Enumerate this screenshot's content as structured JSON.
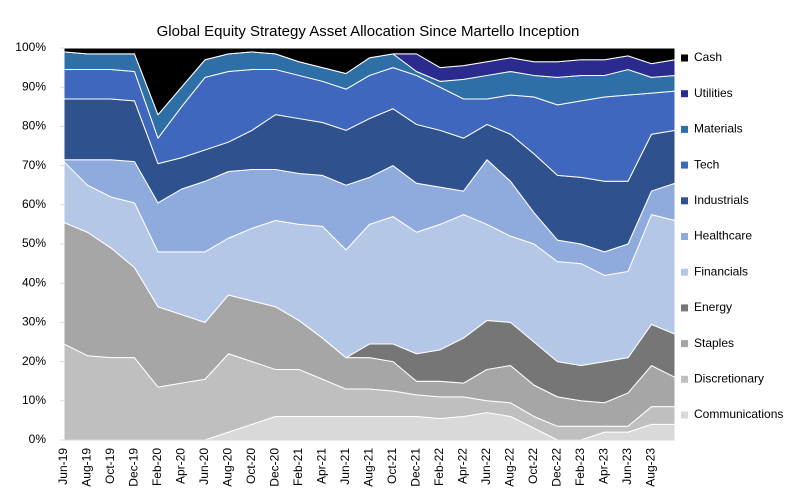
{
  "chart_data": {
    "type": "stacked_area",
    "title": "Global Equity Strategy Asset Allocation Since Martello Inception",
    "categories": [
      "Jun-19",
      "Aug-19",
      "Oct-19",
      "Dec-19",
      "Feb-20",
      "Apr-20",
      "Jun-20",
      "Aug-20",
      "Oct-20",
      "Dec-20",
      "Feb-21",
      "Apr-21",
      "Jun-21",
      "Aug-21",
      "Oct-21",
      "Dec-21",
      "Feb-22",
      "Apr-22",
      "Jun-22",
      "Aug-22",
      "Oct-22",
      "Dec-22",
      "Feb-23",
      "Apr-23",
      "Jun-23",
      "Aug-23",
      null
    ],
    "series": [
      {
        "name": "Communications",
        "color": "#d9d9d9",
        "values": [
          0,
          0,
          0,
          0,
          0,
          0,
          0,
          2,
          4,
          6,
          6,
          6,
          6,
          6,
          6,
          6,
          5.5,
          6,
          7,
          6,
          3,
          0,
          0,
          2,
          2,
          4,
          4
        ]
      },
      {
        "name": "Discretionary",
        "color": "#bfbfbf",
        "values": [
          24.5,
          21.5,
          21,
          21,
          13.5,
          14.5,
          15.5,
          20,
          16,
          12,
          12,
          9.5,
          7,
          7,
          6.5,
          5.5,
          5.5,
          5,
          3,
          3.5,
          3,
          3.5,
          3.5,
          1.5,
          1.5,
          4.5,
          4.5
        ]
      },
      {
        "name": "Staples",
        "color": "#a6a6a6",
        "values": [
          31,
          31.5,
          28,
          23,
          20.5,
          17.5,
          14.5,
          15,
          15.5,
          16,
          12.5,
          10.5,
          8,
          8,
          7.5,
          3.5,
          4,
          3.5,
          8,
          9.5,
          8,
          7.5,
          6.5,
          6,
          8.5,
          10.5,
          7.5
        ]
      },
      {
        "name": "Energy",
        "color": "#767676",
        "values": [
          0,
          0,
          0,
          0,
          0,
          0,
          0,
          0,
          0,
          0,
          0,
          0,
          0,
          3.5,
          4.5,
          7,
          8,
          11.5,
          12.5,
          11,
          11,
          9,
          9,
          10.5,
          9,
          10.5,
          11
        ]
      },
      {
        "name": "Financials",
        "color": "#b4c7e7",
        "values": [
          15.5,
          12,
          13,
          16.5,
          14,
          16,
          18,
          14.5,
          18.5,
          22,
          24.5,
          28.5,
          27.5,
          30.5,
          32.5,
          31,
          32,
          31.5,
          24.5,
          22,
          25,
          25.5,
          26,
          22,
          22,
          28,
          29
        ]
      },
      {
        "name": "Healthcare",
        "color": "#8faadc",
        "values": [
          0.5,
          6.5,
          9.5,
          10.5,
          12.5,
          16,
          18,
          17,
          15,
          13,
          13,
          13,
          16.5,
          12,
          13,
          12.5,
          9.5,
          6,
          16.5,
          14,
          8,
          5.5,
          5,
          6,
          7,
          6,
          9.5
        ]
      },
      {
        "name": "Industrials",
        "color": "#2f528f",
        "values": [
          15.5,
          15.5,
          15.5,
          15.5,
          10,
          8,
          8,
          7.5,
          10,
          14,
          14,
          13.5,
          14,
          15,
          14.5,
          15,
          14.5,
          13.5,
          9,
          12,
          15,
          16.5,
          17,
          18,
          16,
          14.5,
          13.5
        ]
      },
      {
        "name": "Tech",
        "color": "#3e67bd",
        "values": [
          7.5,
          7.5,
          7.5,
          7.5,
          6.5,
          13,
          18.5,
          18,
          15.5,
          11.5,
          11,
          10.5,
          10.5,
          11,
          10.5,
          12.5,
          11,
          10,
          6.5,
          10,
          14.5,
          18,
          19.5,
          21.5,
          22,
          10.5,
          10
        ]
      },
      {
        "name": "Materials",
        "color": "#2e6fa8",
        "values": [
          4.5,
          4,
          4,
          4.5,
          6,
          5,
          4.5,
          4.5,
          4.5,
          4,
          3.5,
          3.5,
          4,
          4.5,
          3.5,
          1,
          1.5,
          5,
          6,
          6,
          5.5,
          7,
          6.5,
          5.5,
          6.5,
          4,
          4
        ]
      },
      {
        "name": "Utilities",
        "color": "#2b2b8f",
        "values": [
          0,
          0,
          0,
          0,
          0,
          0,
          0,
          0,
          0,
          0,
          0,
          0,
          0,
          0,
          0,
          4.5,
          3.5,
          3.5,
          3.5,
          3.5,
          3.5,
          4,
          4,
          4,
          3.5,
          3.5,
          4
        ]
      },
      {
        "name": "Cash",
        "color": "#000000",
        "values": [
          1,
          1.5,
          1.5,
          1.5,
          17,
          10,
          3,
          1.5,
          1,
          1.5,
          3.5,
          5,
          6.5,
          2.5,
          1.5,
          1.5,
          5,
          4.5,
          3.5,
          2.5,
          3.5,
          3.5,
          3,
          3,
          2,
          4,
          3
        ]
      }
    ],
    "ylim": [
      0,
      100
    ],
    "yticks": [
      {
        "value": 0,
        "label": "0%"
      },
      {
        "value": 10,
        "label": "10%"
      },
      {
        "value": 20,
        "label": "20%"
      },
      {
        "value": 30,
        "label": "30%"
      },
      {
        "value": 40,
        "label": "40%"
      },
      {
        "value": 50,
        "label": "50%"
      },
      {
        "value": 60,
        "label": "60%"
      },
      {
        "value": 70,
        "label": "70%"
      },
      {
        "value": 80,
        "label": "80%"
      },
      {
        "value": 90,
        "label": "90%"
      },
      {
        "value": 100,
        "label": "100%"
      }
    ],
    "grid": false,
    "legend": "right"
  }
}
